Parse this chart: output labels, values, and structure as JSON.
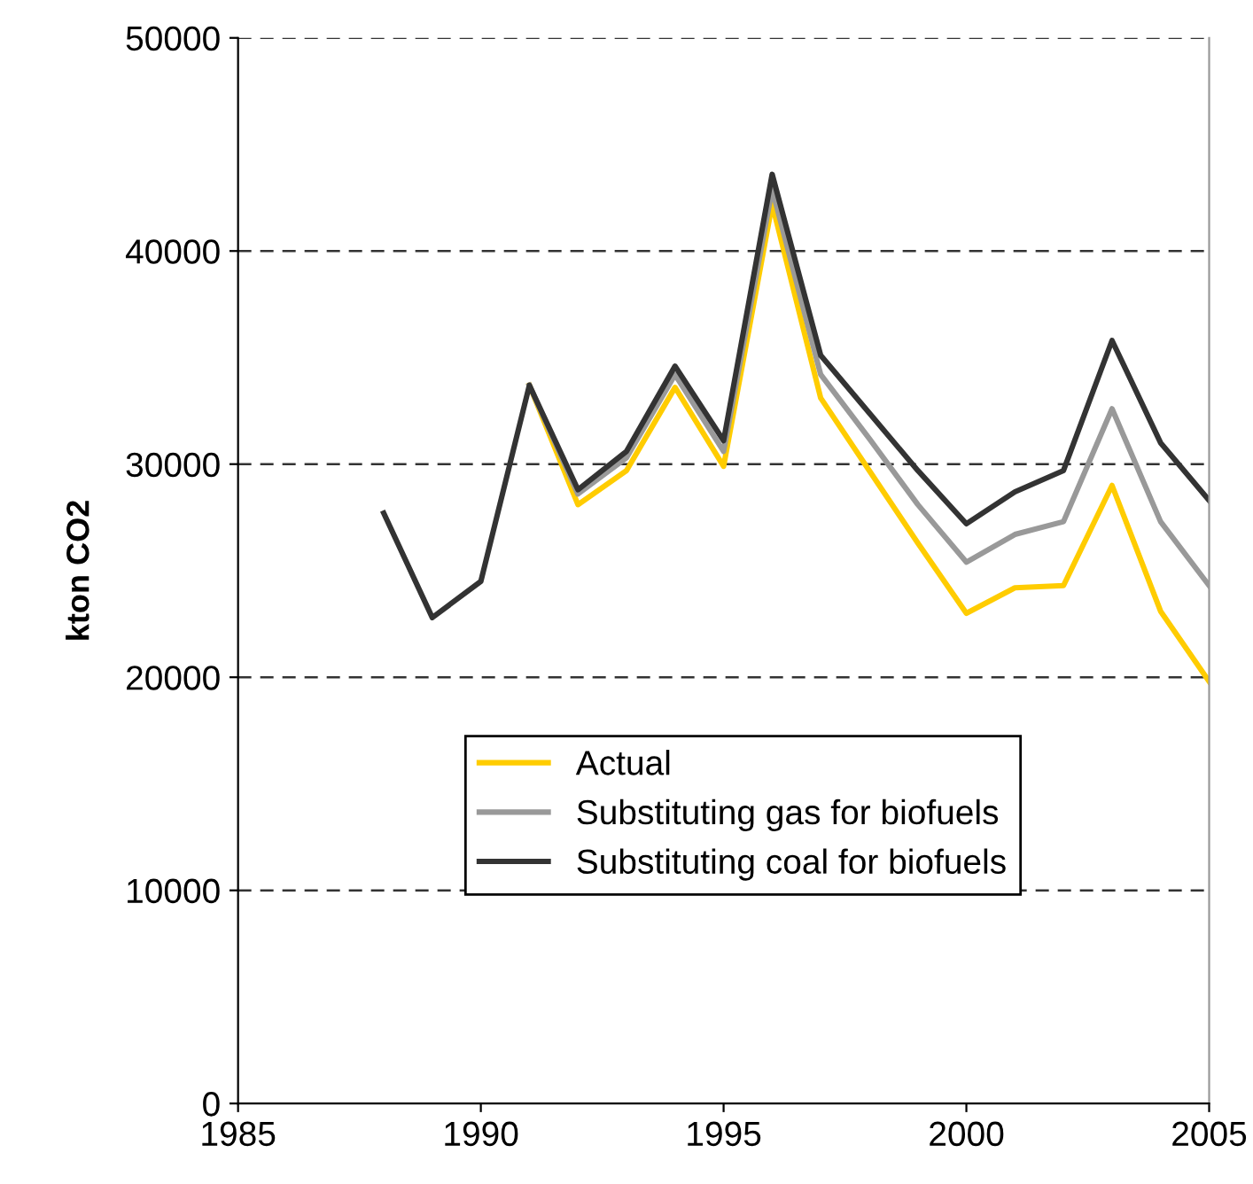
{
  "chart_data": {
    "type": "line",
    "ylabel": "kton CO2",
    "x": [
      1988,
      1989,
      1990,
      1991,
      1992,
      1993,
      1994,
      1995,
      1996,
      1997,
      1998,
      1999,
      2000,
      2001,
      2002,
      2003,
      2004,
      2005
    ],
    "series": [
      {
        "name": "Actual",
        "color": "#ffcc00",
        "values": [
          null,
          null,
          null,
          33700,
          28100,
          29700,
          33600,
          29900,
          42200,
          33100,
          29700,
          26300,
          23000,
          24200,
          24300,
          29000,
          23100,
          19800
        ]
      },
      {
        "name": "Substituting gas for biofuels",
        "color": "#999999",
        "values": [
          null,
          null,
          null,
          33700,
          28600,
          30300,
          34200,
          30600,
          42900,
          34200,
          31200,
          28100,
          25400,
          26700,
          27300,
          32600,
          27300,
          24300
        ]
      },
      {
        "name": "Substituting coal for biofuels",
        "color": "#333333",
        "values": [
          27700,
          22800,
          24500,
          33700,
          28800,
          30600,
          34600,
          31100,
          43600,
          35100,
          32400,
          29700,
          27200,
          28700,
          29700,
          35800,
          31000,
          28300
        ]
      }
    ],
    "xlim": [
      1985,
      2005
    ],
    "xticks": [
      1985,
      1990,
      1995,
      2000,
      2005
    ],
    "ylim": [
      0,
      50000
    ],
    "yticks": [
      0,
      10000,
      20000,
      30000,
      40000,
      50000
    ],
    "grid": "y",
    "legend": "bottom",
    "marker": "none",
    "line_style": "solid"
  }
}
